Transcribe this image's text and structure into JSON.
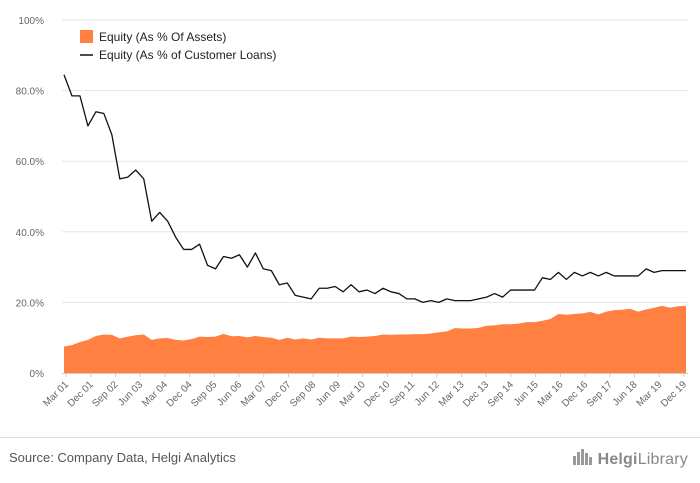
{
  "chart_data": {
    "type": "area",
    "xlabel": "",
    "ylabel": "",
    "ylim": [
      0,
      100
    ],
    "yticks": [
      "0%",
      "20.0%",
      "40.0%",
      "60.0%",
      "80.0%",
      "100%"
    ],
    "x_labels": [
      "Mar 01",
      "Dec 01",
      "Sep 02",
      "Jun 03",
      "Mar 04",
      "Dec 04",
      "Sep 05",
      "Jun 06",
      "Mar 07",
      "Dec 07",
      "Sep 08",
      "Jun 09",
      "Mar 10",
      "Dec 10",
      "Sep 11",
      "Jun 12",
      "Mar 13",
      "Dec 13",
      "Sep 14",
      "Jun 15",
      "Mar 16",
      "Dec 16",
      "Sep 17",
      "Jun 18",
      "Mar 19",
      "Dec 19"
    ],
    "grid": true,
    "legend_position": "top-left",
    "series": [
      {
        "name": "Equity (As % Of Assets)",
        "type": "area",
        "color": "#ff8040",
        "values": [
          7.5,
          7.9,
          8.8,
          9.4,
          10.5,
          10.9,
          10.8,
          9.8,
          10.3,
          10.7,
          10.9,
          9.4,
          9.8,
          9.9,
          9.4,
          9.2,
          9.6,
          10.3,
          10.2,
          10.3,
          11.1,
          10.4,
          10.5,
          10.1,
          10.5,
          10.2,
          10.0,
          9.4,
          10.0,
          9.5,
          9.8,
          9.5,
          10.0,
          9.8,
          9.8,
          9.8,
          10.3,
          10.2,
          10.3,
          10.5,
          10.9,
          10.8,
          10.9,
          10.9,
          11.0,
          11.0,
          11.2,
          11.5,
          11.8,
          12.7,
          12.6,
          12.6,
          12.8,
          13.4,
          13.5,
          13.8,
          13.8,
          14.0,
          14.4,
          14.4,
          14.8,
          15.3,
          16.7,
          16.5,
          16.7,
          16.9,
          17.3,
          16.6,
          17.4,
          17.8,
          17.9,
          18.2,
          17.4,
          18.0,
          18.5,
          19.0,
          18.5,
          18.9,
          19.0
        ]
      },
      {
        "name": "Equity (As % of Customer Loans)",
        "type": "line",
        "color": "#111111",
        "values": [
          84.5,
          78.5,
          78.5,
          70.0,
          74.0,
          73.5,
          67.5,
          55.0,
          55.5,
          57.5,
          55.0,
          43.0,
          45.5,
          43.0,
          38.5,
          35.0,
          35.0,
          36.5,
          30.5,
          29.5,
          33.0,
          32.5,
          33.5,
          30.0,
          34.0,
          29.5,
          29.0,
          25.0,
          25.5,
          22.0,
          21.5,
          21.0,
          24.0,
          24.0,
          24.5,
          23.0,
          25.0,
          23.0,
          23.5,
          22.5,
          24.0,
          23.0,
          22.5,
          21.0,
          21.0,
          20.0,
          20.5,
          20.0,
          21.0,
          20.5,
          20.5,
          20.5,
          21.0,
          21.5,
          22.5,
          21.5,
          23.5,
          23.5,
          23.5,
          23.5,
          27.0,
          26.5,
          28.5,
          26.5,
          28.5,
          27.5,
          28.5,
          27.5,
          28.5,
          27.5,
          27.5,
          27.5,
          27.5,
          29.5,
          28.5,
          29.0,
          29.0,
          29.0,
          29.0
        ]
      }
    ]
  },
  "footer": {
    "source": "Source: Company Data, Helgi Analytics",
    "brand_part1": "Helgi",
    "brand_part2": "Library",
    "brand_icon": "city-skyline-icon"
  }
}
